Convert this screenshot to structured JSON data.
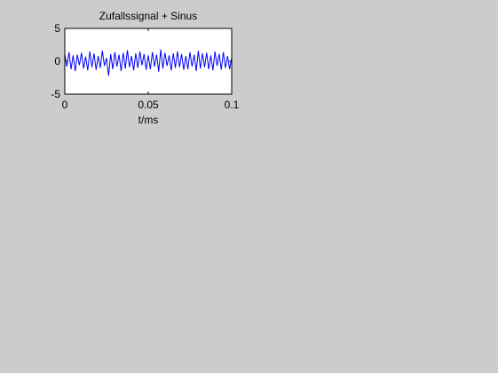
{
  "chart_data": {
    "type": "line",
    "title": "Zufallssignal + Sinus",
    "xlabel": "t/ms",
    "ylabel": "",
    "xlim": [
      0,
      0.1
    ],
    "ylim": [
      -5,
      5
    ],
    "xticks": [
      0,
      0.05,
      0.1
    ],
    "xtick_labels": [
      "0",
      "0.05",
      "0.1"
    ],
    "yticks": [
      -5,
      0,
      5
    ],
    "ytick_labels": [
      "-5",
      "0",
      "5"
    ],
    "grid": false,
    "line_color": "#0000ff",
    "series": [
      {
        "x": [
          0,
          0.00125,
          0.0025,
          0.00375,
          0.005,
          0.00625,
          0.0075,
          0.00875,
          0.01,
          0.01125,
          0.0125,
          0.01375,
          0.015,
          0.01625,
          0.0175,
          0.01875,
          0.02,
          0.02125,
          0.0225,
          0.02375,
          0.025,
          0.02625,
          0.0275,
          0.02875,
          0.03,
          0.03125,
          0.0325,
          0.03375,
          0.035,
          0.03625,
          0.0375,
          0.03875,
          0.04,
          0.04125,
          0.0425,
          0.04375,
          0.045,
          0.04625,
          0.0475,
          0.04875,
          0.05,
          0.05125,
          0.0525,
          0.05375,
          0.055,
          0.05625,
          0.0575,
          0.05875,
          0.06,
          0.06125,
          0.0625,
          0.06375,
          0.065,
          0.06625,
          0.0675,
          0.06875,
          0.07,
          0.07125,
          0.0725,
          0.07375,
          0.075,
          0.07625,
          0.0775,
          0.07875,
          0.08,
          0.08125,
          0.0825,
          0.08375,
          0.085,
          0.08625,
          0.0875,
          0.08875,
          0.09,
          0.09125,
          0.0925,
          0.09375,
          0.095,
          0.09625,
          0.0975,
          0.09875,
          0.1
        ],
        "y": [
          1.1,
          -0.8,
          1.4,
          -1.2,
          0.9,
          -1.5,
          1.0,
          -0.6,
          1.3,
          -1.1,
          0.7,
          -1.4,
          1.5,
          -0.9,
          1.2,
          -1.3,
          0.8,
          -1.0,
          1.6,
          -0.7,
          0.5,
          -2.2,
          1.1,
          -1.2,
          1.4,
          -0.8,
          1.0,
          -1.5,
          1.3,
          -1.1,
          1.7,
          -0.9,
          0.8,
          -1.4,
          1.2,
          -1.0,
          1.5,
          -0.6,
          1.1,
          -1.3,
          0.9,
          -1.2,
          1.4,
          -0.8,
          1.0,
          -1.6,
          1.8,
          -1.1,
          1.3,
          -0.7,
          0.9,
          -1.4,
          1.2,
          -1.0,
          1.5,
          -0.9,
          1.1,
          -1.3,
          0.8,
          -1.2,
          1.4,
          -0.8,
          1.0,
          -1.5,
          1.6,
          -1.1,
          1.2,
          -0.9,
          1.3,
          -1.2,
          0.9,
          -1.4,
          1.5,
          -0.7,
          1.1,
          -1.3,
          1.4,
          -1.0,
          0.8,
          -1.2,
          0.6
        ]
      }
    ]
  }
}
